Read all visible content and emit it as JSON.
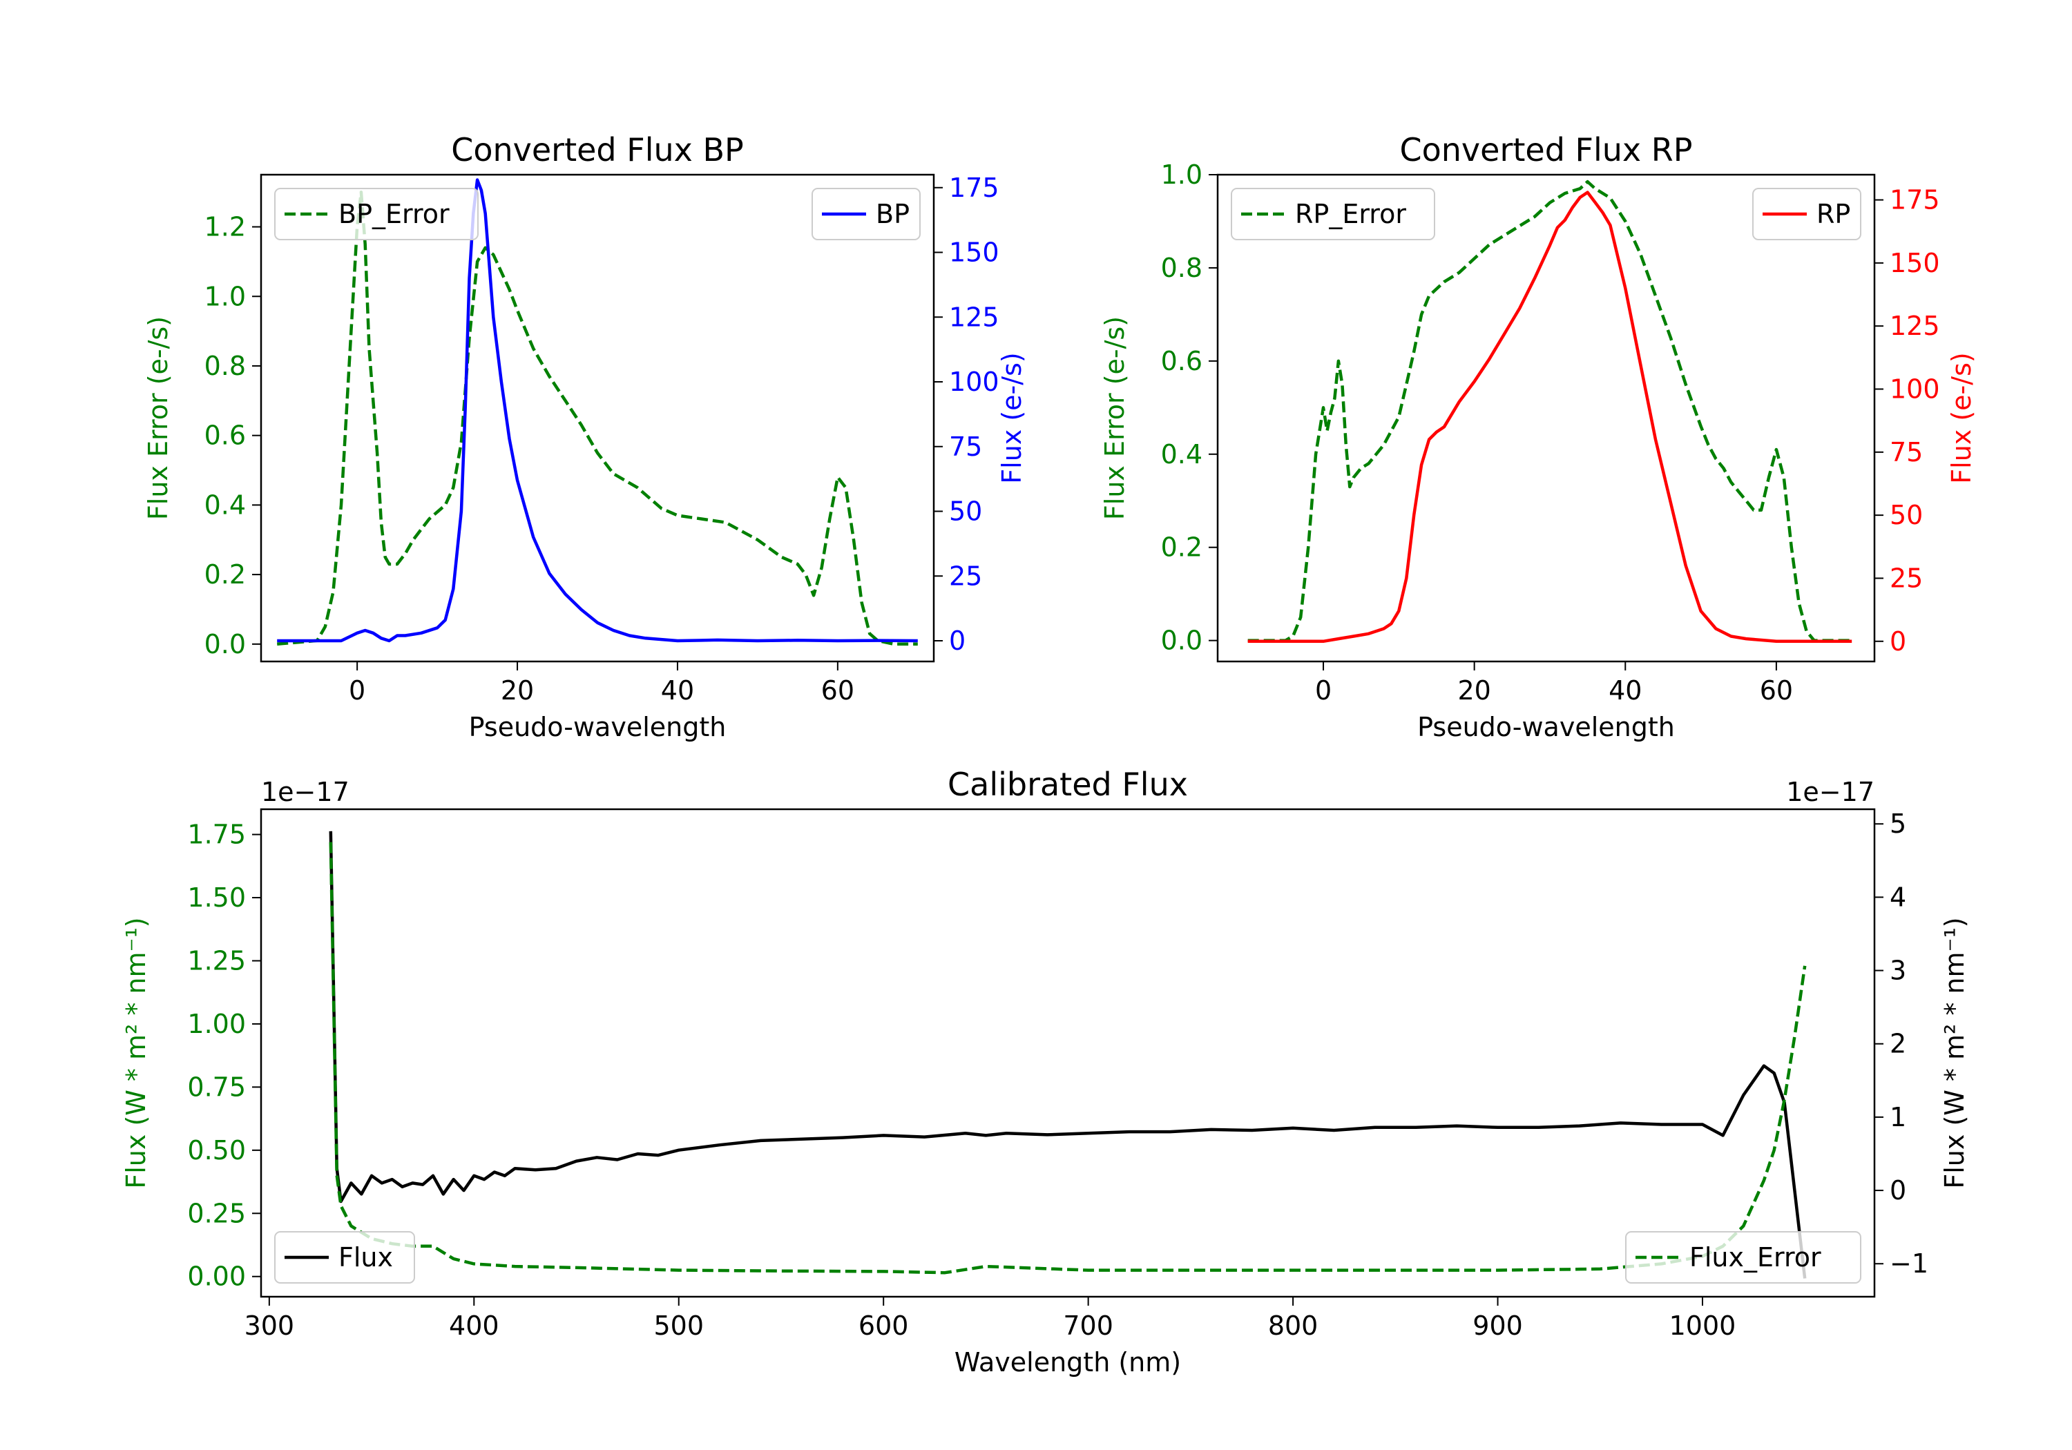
{
  "colors": {
    "green": "#008000",
    "blue": "#0000ff",
    "red": "#ff0000",
    "black": "#000000"
  },
  "chart_data": [
    {
      "type": "line",
      "title": "Converted Flux BP",
      "xlabel": "Pseudo-wavelength",
      "ylabel_left": "Flux Error (e-/s)",
      "ylabel_right": "Flux (e-/s)",
      "xlim": [
        -12,
        72
      ],
      "ylim_left": [
        -0.05,
        1.35
      ],
      "ylim_right": [
        -8,
        180
      ],
      "xticks": [
        0,
        20,
        40,
        60
      ],
      "yticks_left": [
        "0.0",
        "0.2",
        "0.4",
        "0.6",
        "0.8",
        "1.0",
        "1.2"
      ],
      "yticks_right": [
        "0",
        "25",
        "50",
        "75",
        "100",
        "125",
        "150",
        "175"
      ],
      "series": [
        {
          "name": "BP_Error",
          "axis": "left",
          "style": "dashed",
          "color": "#008000",
          "x": [
            -10,
            -5,
            -4,
            -3,
            -2,
            -1,
            0,
            0.5,
            1,
            1.5,
            2,
            2.5,
            3,
            3.5,
            4,
            5,
            6,
            7,
            8,
            9,
            10,
            11,
            12,
            13,
            14,
            15,
            16,
            17,
            18,
            19,
            20,
            22,
            24,
            26,
            28,
            30,
            32,
            35,
            38,
            40,
            43,
            46,
            50,
            53,
            55,
            56,
            57,
            58,
            59,
            60,
            61,
            62,
            63,
            64,
            65,
            67,
            70
          ],
          "y": [
            0,
            0.01,
            0.05,
            0.15,
            0.4,
            0.8,
            1.2,
            1.3,
            1.15,
            0.85,
            0.7,
            0.55,
            0.35,
            0.25,
            0.23,
            0.23,
            0.26,
            0.3,
            0.33,
            0.36,
            0.38,
            0.4,
            0.45,
            0.58,
            0.88,
            1.1,
            1.14,
            1.12,
            1.07,
            1.02,
            0.96,
            0.85,
            0.77,
            0.7,
            0.63,
            0.55,
            0.49,
            0.45,
            0.39,
            0.37,
            0.36,
            0.35,
            0.3,
            0.25,
            0.23,
            0.2,
            0.14,
            0.22,
            0.36,
            0.48,
            0.45,
            0.3,
            0.12,
            0.03,
            0.01,
            0,
            0
          ]
        },
        {
          "name": "BP",
          "axis": "right",
          "style": "solid",
          "color": "#0000ff",
          "x": [
            -10,
            -2,
            0,
            1,
            2,
            3,
            4,
            5,
            6,
            8,
            10,
            11,
            12,
            13,
            13.5,
            14,
            14.5,
            15,
            15.5,
            16,
            16.5,
            17,
            18,
            19,
            20,
            22,
            24,
            26,
            28,
            30,
            32,
            34,
            36,
            38,
            40,
            45,
            50,
            55,
            60,
            65,
            70
          ],
          "y": [
            0,
            0,
            3,
            4,
            3,
            1,
            0,
            2,
            2,
            3,
            5,
            8,
            20,
            50,
            90,
            140,
            165,
            178,
            174,
            165,
            145,
            125,
            100,
            78,
            62,
            40,
            26,
            18,
            12,
            7,
            4,
            2,
            1,
            0.5,
            0,
            0.3,
            0,
            0.2,
            0,
            0.1,
            0
          ]
        }
      ],
      "legend": [
        {
          "label": "BP_Error",
          "position": "top-left"
        },
        {
          "label": "BP",
          "position": "top-right"
        }
      ]
    },
    {
      "type": "line",
      "title": "Converted Flux RP",
      "xlabel": "Pseudo-wavelength",
      "ylabel_left": "Flux Error (e-/s)",
      "ylabel_right": "Flux (e-/s)",
      "xlim": [
        -14,
        73
      ],
      "ylim_left": [
        -0.045,
        1.0
      ],
      "ylim_right": [
        -8,
        185
      ],
      "xticks": [
        0,
        20,
        40,
        60
      ],
      "yticks_left": [
        "0.0",
        "0.2",
        "0.4",
        "0.6",
        "0.8",
        "1.0"
      ],
      "yticks_right": [
        "0",
        "25",
        "50",
        "75",
        "100",
        "125",
        "150",
        "175"
      ],
      "series": [
        {
          "name": "RP_Error",
          "axis": "left",
          "style": "dashed",
          "color": "#008000",
          "x": [
            -10,
            -5,
            -4,
            -3,
            -2,
            -1,
            0,
            0.5,
            1,
            1.5,
            2,
            2.5,
            3,
            3.5,
            4,
            5,
            6,
            8,
            10,
            11,
            12,
            13,
            14,
            16,
            18,
            20,
            22,
            24,
            26,
            28,
            30,
            32,
            34,
            35,
            36,
            38,
            40,
            42,
            44,
            46,
            48,
            50,
            51,
            52,
            53,
            54,
            55,
            56,
            57,
            58,
            59,
            60,
            61,
            62,
            63,
            64,
            65,
            70
          ],
          "y": [
            0,
            0,
            0.01,
            0.05,
            0.2,
            0.4,
            0.5,
            0.45,
            0.49,
            0.52,
            0.6,
            0.55,
            0.42,
            0.33,
            0.35,
            0.37,
            0.38,
            0.42,
            0.48,
            0.55,
            0.62,
            0.7,
            0.74,
            0.77,
            0.79,
            0.82,
            0.85,
            0.87,
            0.89,
            0.91,
            0.94,
            0.96,
            0.97,
            0.985,
            0.97,
            0.95,
            0.9,
            0.83,
            0.74,
            0.65,
            0.55,
            0.46,
            0.42,
            0.39,
            0.37,
            0.34,
            0.32,
            0.3,
            0.28,
            0.28,
            0.35,
            0.41,
            0.35,
            0.2,
            0.08,
            0.02,
            0,
            0
          ]
        },
        {
          "name": "RP",
          "axis": "right",
          "style": "solid",
          "color": "#ff0000",
          "x": [
            -10,
            0,
            2,
            4,
            6,
            8,
            9,
            10,
            11,
            12,
            13,
            14,
            15,
            16,
            18,
            20,
            22,
            24,
            26,
            28,
            30,
            31,
            32,
            33,
            34,
            35,
            36,
            37,
            38,
            40,
            42,
            44,
            46,
            48,
            50,
            52,
            54,
            56,
            60,
            65,
            70
          ],
          "y": [
            0,
            0,
            1,
            2,
            3,
            5,
            7,
            12,
            25,
            50,
            70,
            80,
            83,
            85,
            95,
            103,
            112,
            122,
            132,
            144,
            157,
            164,
            167,
            172,
            176,
            178,
            174,
            170,
            165,
            140,
            110,
            80,
            55,
            30,
            12,
            5,
            2,
            1,
            0,
            0,
            0
          ]
        }
      ],
      "legend": [
        {
          "label": "RP_Error",
          "position": "top-left"
        },
        {
          "label": "RP",
          "position": "top-right"
        }
      ]
    },
    {
      "type": "line",
      "title": "Calibrated Flux",
      "xlabel": "Wavelength (nm)",
      "ylabel_left": "Flux (W * m² * nm⁻¹)",
      "ylabel_right": "Flux (W * m² * nm⁻¹)",
      "offset_left": "1e−17",
      "offset_right": "1e−17",
      "xlim": [
        296,
        1084
      ],
      "ylim_left": [
        -0.08,
        1.85
      ],
      "ylim_right": [
        -1.45,
        5.2
      ],
      "xticks": [
        300,
        400,
        500,
        600,
        700,
        800,
        900,
        1000
      ],
      "yticks_left": [
        "0.00",
        "0.25",
        "0.50",
        "0.75",
        "1.00",
        "1.25",
        "1.50",
        "1.75"
      ],
      "yticks_right": [
        "−1",
        "0",
        "1",
        "2",
        "3",
        "4",
        "5"
      ],
      "series": [
        {
          "name": "Flux",
          "axis": "right",
          "style": "solid",
          "color": "#000000",
          "x": [
            330,
            333,
            335,
            340,
            345,
            350,
            355,
            360,
            365,
            370,
            375,
            380,
            385,
            390,
            395,
            400,
            405,
            410,
            415,
            420,
            430,
            440,
            450,
            460,
            470,
            480,
            490,
            500,
            520,
            540,
            560,
            580,
            600,
            620,
            640,
            650,
            660,
            680,
            700,
            720,
            740,
            760,
            780,
            800,
            820,
            840,
            860,
            880,
            900,
            920,
            940,
            960,
            980,
            1000,
            1010,
            1020,
            1030,
            1035,
            1040,
            1045,
            1050
          ],
          "y": [
            4.9,
            0.3,
            -0.15,
            0.1,
            -0.05,
            0.2,
            0.1,
            0.15,
            0.05,
            0.1,
            0.08,
            0.2,
            -0.05,
            0.15,
            0,
            0.2,
            0.15,
            0.25,
            0.2,
            0.3,
            0.28,
            0.3,
            0.4,
            0.45,
            0.42,
            0.5,
            0.48,
            0.55,
            0.62,
            0.68,
            0.7,
            0.72,
            0.75,
            0.73,
            0.78,
            0.75,
            0.78,
            0.76,
            0.78,
            0.8,
            0.8,
            0.83,
            0.82,
            0.85,
            0.82,
            0.86,
            0.86,
            0.88,
            0.86,
            0.86,
            0.88,
            0.92,
            0.9,
            0.9,
            0.75,
            1.3,
            1.7,
            1.6,
            1.2,
            0,
            -1.2
          ]
        },
        {
          "name": "Flux_Error",
          "axis": "left",
          "style": "dashed",
          "color": "#008000",
          "x": [
            330,
            333,
            335,
            340,
            350,
            360,
            370,
            380,
            390,
            400,
            420,
            450,
            500,
            550,
            600,
            630,
            650,
            700,
            800,
            900,
            950,
            980,
            1000,
            1010,
            1020,
            1030,
            1035,
            1040,
            1045,
            1050
          ],
          "y": [
            1.72,
            0.4,
            0.28,
            0.2,
            0.15,
            0.13,
            0.12,
            0.12,
            0.07,
            0.05,
            0.04,
            0.035,
            0.025,
            0.022,
            0.02,
            0.015,
            0.04,
            0.025,
            0.025,
            0.025,
            0.03,
            0.05,
            0.08,
            0.12,
            0.2,
            0.38,
            0.5,
            0.7,
            0.95,
            1.23
          ]
        }
      ],
      "legend": [
        {
          "label": "Flux",
          "position": "lower-left"
        },
        {
          "label": "Flux_Error",
          "position": "lower-right"
        }
      ]
    }
  ]
}
